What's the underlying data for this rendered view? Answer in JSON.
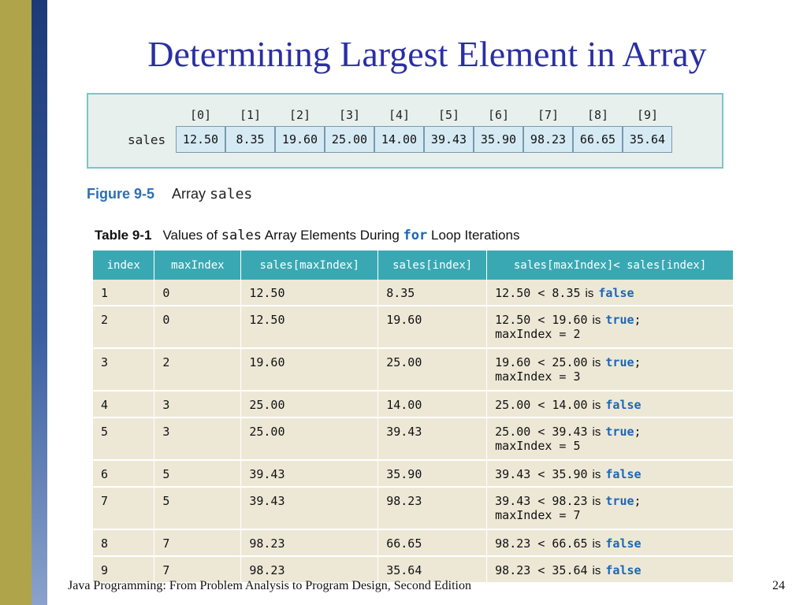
{
  "slide": {
    "title": "Determining Largest Element in Array",
    "footer": "Java Programming: From Problem Analysis to Program Design, Second Edition",
    "page_number": "24"
  },
  "figure": {
    "array_name": "sales",
    "indices": [
      "[0]",
      "[1]",
      "[2]",
      "[3]",
      "[4]",
      "[5]",
      "[6]",
      "[7]",
      "[8]",
      "[9]"
    ],
    "values": [
      "12.50",
      "8.35",
      "19.60",
      "25.00",
      "14.00",
      "39.43",
      "35.90",
      "98.23",
      "66.65",
      "35.64"
    ],
    "caption_number": "Figure 9-5",
    "caption_text": "Array",
    "caption_code": "sales"
  },
  "table": {
    "caption_number": "Table 9-1",
    "caption_part1": "Values of",
    "caption_code1": "sales",
    "caption_part2": "Array Elements During",
    "caption_keyword": "for",
    "caption_part3": "Loop Iterations",
    "headers": [
      "index",
      "maxIndex",
      "sales[maxIndex]",
      "sales[index]",
      "sales[maxIndex]< sales[index]"
    ],
    "is_word": "is",
    "rows": [
      {
        "index": "1",
        "maxIndex": "0",
        "sales_max": "12.50",
        "sales_idx": "8.35",
        "cmp": "12.50 < 8.35",
        "result": "false",
        "update": ""
      },
      {
        "index": "2",
        "maxIndex": "0",
        "sales_max": "12.50",
        "sales_idx": "19.60",
        "cmp": "12.50 < 19.60",
        "result": "true",
        "update": "maxIndex = 2"
      },
      {
        "index": "3",
        "maxIndex": "2",
        "sales_max": "19.60",
        "sales_idx": "25.00",
        "cmp": "19.60 < 25.00",
        "result": "true",
        "update": "maxIndex = 3"
      },
      {
        "index": "4",
        "maxIndex": "3",
        "sales_max": "25.00",
        "sales_idx": "14.00",
        "cmp": "25.00 < 14.00",
        "result": "false",
        "update": ""
      },
      {
        "index": "5",
        "maxIndex": "3",
        "sales_max": "25.00",
        "sales_idx": "39.43",
        "cmp": "25.00 < 39.43",
        "result": "true",
        "update": "maxIndex = 5"
      },
      {
        "index": "6",
        "maxIndex": "5",
        "sales_max": "39.43",
        "sales_idx": "35.90",
        "cmp": "39.43 < 35.90",
        "result": "false",
        "update": ""
      },
      {
        "index": "7",
        "maxIndex": "5",
        "sales_max": "39.43",
        "sales_idx": "98.23",
        "cmp": "39.43 < 98.23",
        "result": "true",
        "update": "maxIndex = 7"
      },
      {
        "index": "8",
        "maxIndex": "7",
        "sales_max": "98.23",
        "sales_idx": "66.65",
        "cmp": "98.23 < 66.65",
        "result": "false",
        "update": ""
      },
      {
        "index": "9",
        "maxIndex": "7",
        "sales_max": "98.23",
        "sales_idx": "35.64",
        "cmp": "98.23 < 35.64",
        "result": "false",
        "update": ""
      }
    ]
  },
  "colors": {
    "title": "#2b2fa3",
    "header_bg": "#3aa8b3",
    "row_bg": "#ede8d6",
    "keyword": "#1c66b5"
  }
}
